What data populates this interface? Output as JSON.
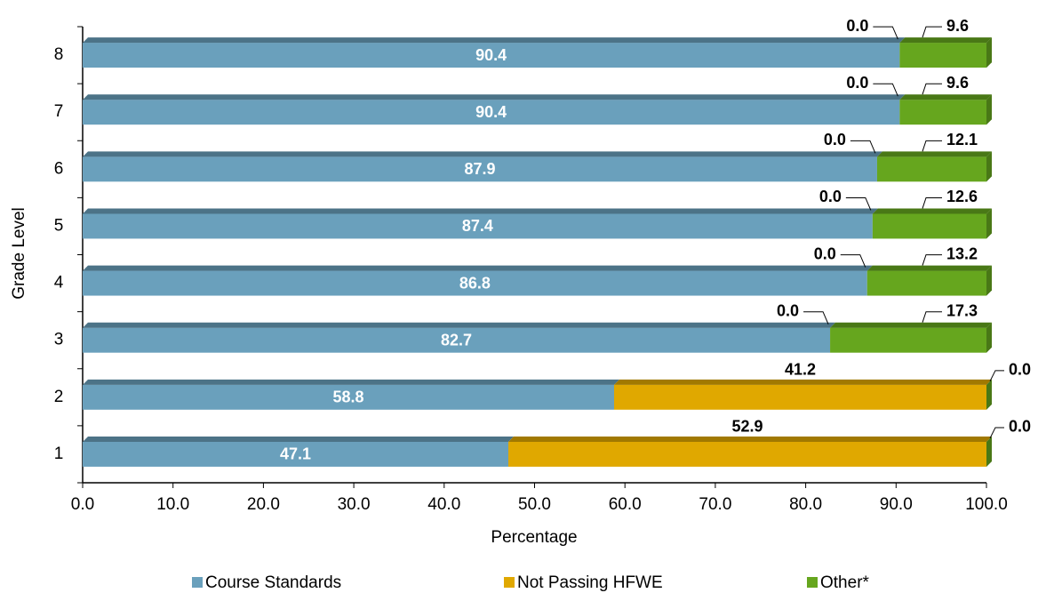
{
  "chart_data": {
    "type": "stacked_barh",
    "xlabel": "Percentage",
    "ylabel": "Grade Level",
    "categories": [
      "1",
      "2",
      "3",
      "4",
      "5",
      "6",
      "7",
      "8"
    ],
    "series": [
      {
        "name": "Course Standards",
        "color": "#6aa0bc",
        "values": [
          47.1,
          58.8,
          82.7,
          86.8,
          87.4,
          87.9,
          90.4,
          90.4
        ],
        "value_labels": [
          "47.1",
          "58.8",
          "82.7",
          "86.8",
          "87.4",
          "87.9",
          "90.4",
          "90.4"
        ]
      },
      {
        "name": "Not Passing HFWE",
        "color": "#e0a800",
        "values": [
          52.9,
          41.2,
          0,
          0,
          0,
          0,
          0,
          0
        ],
        "value_labels": [
          "52.9",
          "41.2",
          "0.0",
          "0.0",
          "0.0",
          "0.0",
          "0.0",
          "0.0"
        ]
      },
      {
        "name": "Other*",
        "color": "#66a61e",
        "values": [
          0,
          0,
          17.3,
          13.2,
          12.6,
          12.1,
          9.6,
          9.6
        ],
        "value_labels": [
          "0.0",
          "0.0",
          "17.3",
          "13.2",
          "12.6",
          "12.1",
          "9.6",
          "9.6"
        ]
      }
    ],
    "xlim": [
      0,
      100
    ],
    "xticks": [
      {
        "value": 0,
        "label": "0.0"
      },
      {
        "value": 10,
        "label": "10.0"
      },
      {
        "value": 20,
        "label": "20.0"
      },
      {
        "value": 30,
        "label": "30.0"
      },
      {
        "value": 40,
        "label": "40.0"
      },
      {
        "value": 50,
        "label": "50.0"
      },
      {
        "value": 60,
        "label": "60.0"
      },
      {
        "value": 70,
        "label": "70.0"
      },
      {
        "value": 80,
        "label": "80.0"
      },
      {
        "value": 90,
        "label": "90.0"
      },
      {
        "value": 100,
        "label": "100.0"
      }
    ],
    "legend": "bottom"
  }
}
